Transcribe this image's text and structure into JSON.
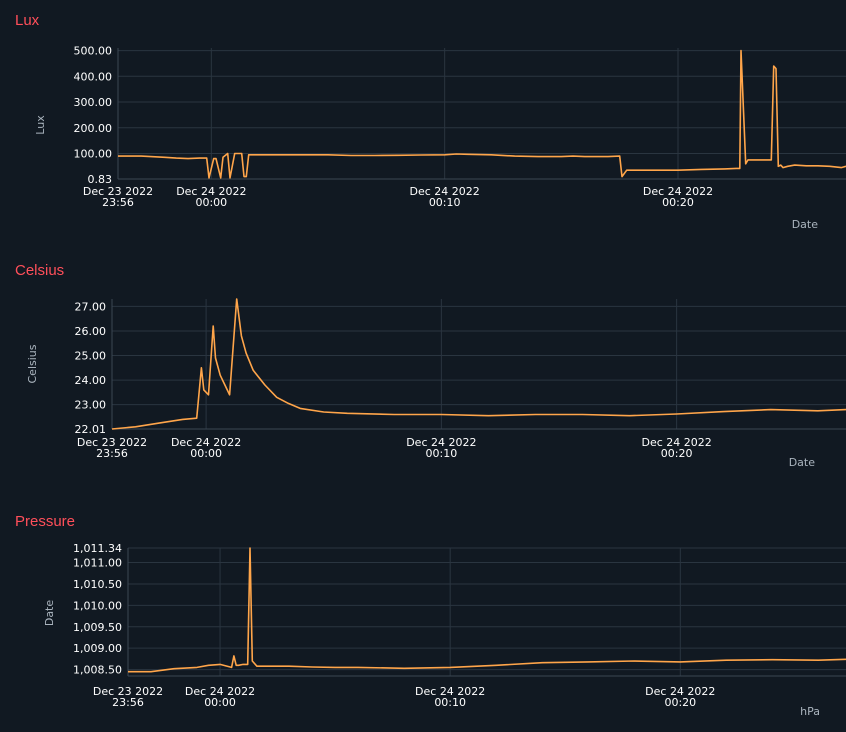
{
  "chart_data": [
    {
      "type": "line",
      "title": "Lux",
      "ylabel": "Lux",
      "xlabel": "Date",
      "yticks": [
        {
          "value": 0.83,
          "label": "0.83"
        },
        {
          "value": 100,
          "label": "100.00"
        },
        {
          "value": 200,
          "label": "200.00"
        },
        {
          "value": 300,
          "label": "300.00"
        },
        {
          "value": 400,
          "label": "400.00"
        },
        {
          "value": 500,
          "label": "500.00"
        }
      ],
      "ylim": [
        0.83,
        510
      ],
      "xticks": [
        {
          "t": 0,
          "line1": "Dec 23 2022",
          "line2": "23:56"
        },
        {
          "t": 4,
          "line1": "Dec 24 2022",
          "line2": "00:00"
        },
        {
          "t": 14,
          "line1": "Dec 24 2022",
          "line2": "00:10"
        },
        {
          "t": 24,
          "line1": "Dec 24 2022",
          "line2": "00:20"
        }
      ],
      "xlim": [
        0,
        31.2
      ],
      "color": "#ffa54a",
      "x": [
        0,
        1,
        2,
        2.5,
        3,
        3.5,
        3.8,
        3.9,
        4.1,
        4.2,
        4.4,
        4.5,
        4.7,
        4.8,
        5,
        5.1,
        5.3,
        5.4,
        5.5,
        5.6,
        6,
        7,
        8,
        9,
        10,
        11,
        12,
        13,
        14,
        14.5,
        15,
        16,
        17,
        18,
        19,
        19.5,
        20,
        21,
        21.5,
        21.6,
        21.8,
        21.9,
        22,
        23,
        24,
        25,
        26,
        26.5,
        26.65,
        26.7,
        26.9,
        27,
        27.3,
        27.5,
        27.6,
        28,
        28.1,
        28.2,
        28.3,
        28.4,
        28.5,
        28.7,
        29,
        29.5,
        30,
        30.5,
        31,
        31.2
      ],
      "y": [
        90,
        90,
        85,
        82,
        80,
        82,
        82,
        5,
        80,
        80,
        5,
        85,
        100,
        5,
        100,
        100,
        100,
        10,
        10,
        95,
        95,
        95,
        95,
        95,
        92,
        92,
        93,
        94,
        95,
        98,
        97,
        95,
        90,
        88,
        88,
        90,
        88,
        88,
        90,
        10,
        35,
        35,
        35,
        35,
        35,
        38,
        40,
        42,
        42,
        500,
        60,
        75,
        75,
        75,
        75,
        75,
        440,
        430,
        50,
        55,
        45,
        50,
        55,
        52,
        52,
        50,
        45,
        50
      ]
    },
    {
      "type": "line",
      "title": "Celsius",
      "ylabel": "Celsius",
      "xlabel": "Date",
      "yticks": [
        {
          "value": 22.01,
          "label": "22.01"
        },
        {
          "value": 23,
          "label": "23.00"
        },
        {
          "value": 24,
          "label": "24.00"
        },
        {
          "value": 25,
          "label": "25.00"
        },
        {
          "value": 26,
          "label": "26.00"
        },
        {
          "value": 27,
          "label": "27.00"
        }
      ],
      "ylim": [
        22.01,
        27.3
      ],
      "xticks": [
        {
          "t": 0,
          "line1": "Dec 23 2022",
          "line2": "23:56"
        },
        {
          "t": 4,
          "line1": "Dec 24 2022",
          "line2": "00:00"
        },
        {
          "t": 14,
          "line1": "Dec 24 2022",
          "line2": "00:10"
        },
        {
          "t": 24,
          "line1": "Dec 24 2022",
          "line2": "00:20"
        }
      ],
      "xlim": [
        0,
        31.2
      ],
      "color": "#ffa54a",
      "x": [
        0,
        1,
        2,
        3,
        3.6,
        3.8,
        3.9,
        4.1,
        4.3,
        4.4,
        4.6,
        4.8,
        5,
        5.3,
        5.5,
        5.7,
        6,
        6.5,
        7,
        7.5,
        8,
        9,
        10,
        12,
        14,
        16,
        18,
        20,
        22,
        24,
        26,
        28,
        30,
        31.2
      ],
      "y": [
        22.01,
        22.1,
        22.25,
        22.4,
        22.45,
        24.5,
        23.6,
        23.4,
        26.2,
        24.9,
        24.2,
        23.8,
        23.4,
        27.3,
        25.8,
        25.1,
        24.4,
        23.8,
        23.3,
        23.05,
        22.85,
        22.7,
        22.65,
        22.6,
        22.6,
        22.55,
        22.6,
        22.6,
        22.55,
        22.62,
        22.72,
        22.8,
        22.75,
        22.8
      ]
    },
    {
      "type": "line",
      "title": "Pressure",
      "ylabel": "Date",
      "xlabel": "hPa",
      "yticks": [
        {
          "value": 1008.5,
          "label": "1,008.50"
        },
        {
          "value": 1009.0,
          "label": "1,009.00"
        },
        {
          "value": 1009.5,
          "label": "1,009.50"
        },
        {
          "value": 1010.0,
          "label": "1,010.00"
        },
        {
          "value": 1010.5,
          "label": "1,010.50"
        },
        {
          "value": 1011.0,
          "label": "1,011.00"
        },
        {
          "value": 1011.34,
          "label": "1,011.34"
        }
      ],
      "ylim": [
        1008.35,
        1011.34
      ],
      "xticks": [
        {
          "t": 0,
          "line1": "Dec 23 2022",
          "line2": "23:56"
        },
        {
          "t": 4,
          "line1": "Dec 24 2022",
          "line2": "00:00"
        },
        {
          "t": 14,
          "line1": "Dec 24 2022",
          "line2": "00:10"
        },
        {
          "t": 24,
          "line1": "Dec 24 2022",
          "line2": "00:20"
        }
      ],
      "xlim": [
        0,
        31.2
      ],
      "color": "#ffa54a",
      "x": [
        0,
        1,
        2,
        3,
        3.5,
        4,
        4.5,
        4.6,
        4.7,
        4.8,
        5,
        5.2,
        5.3,
        5.4,
        5.6,
        6,
        7,
        8,
        9,
        10,
        12,
        14,
        16,
        18,
        20,
        22,
        24,
        26,
        28,
        30,
        31.2
      ],
      "y": [
        1008.45,
        1008.45,
        1008.52,
        1008.55,
        1008.6,
        1008.62,
        1008.55,
        1008.82,
        1008.6,
        1008.6,
        1008.62,
        1008.62,
        1011.34,
        1008.7,
        1008.58,
        1008.58,
        1008.58,
        1008.56,
        1008.55,
        1008.55,
        1008.53,
        1008.55,
        1008.6,
        1008.66,
        1008.68,
        1008.7,
        1008.68,
        1008.72,
        1008.73,
        1008.72,
        1008.74
      ]
    }
  ]
}
